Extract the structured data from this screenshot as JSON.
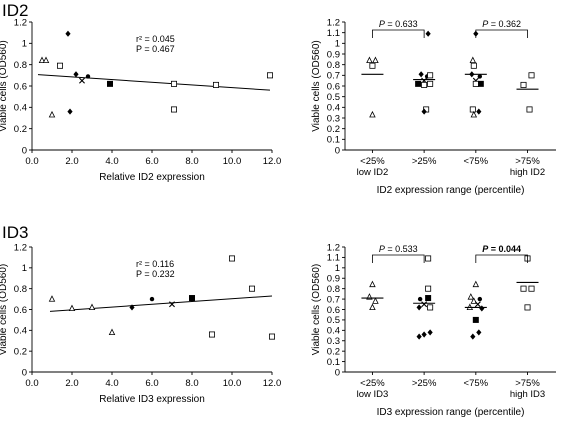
{
  "panels": [
    {
      "id": "id2",
      "label": "ID2"
    },
    {
      "id": "id3",
      "label": "ID3"
    }
  ],
  "chart_data": [
    {
      "type": "scatter",
      "panel": "ID2",
      "xlabel": "Relative ID2 expression",
      "ylabel": "Viable cells (OD560)",
      "xlim": [
        0,
        12
      ],
      "ylim": [
        0,
        1.2
      ],
      "xticks": [
        "0.0",
        "2.0",
        "4.0",
        "6.0",
        "8.0",
        "10.0",
        "12.0"
      ],
      "yticks": [
        "0",
        "0.2",
        "0.4",
        "0.6",
        "0.8",
        "1",
        "1.2"
      ],
      "stats": [
        "r² = 0.045",
        "P = 0.467"
      ],
      "regression": {
        "y_at_xmin": 0.71,
        "y_at_xmax": 0.56,
        "x_range": [
          0.3,
          11.9
        ]
      },
      "points": [
        {
          "x": 0.5,
          "y": 0.84,
          "m": "triangle"
        },
        {
          "x": 0.7,
          "y": 0.84,
          "m": "triangle"
        },
        {
          "x": 1.0,
          "y": 0.33,
          "m": "triangle"
        },
        {
          "x": 1.4,
          "y": 0.79,
          "m": "square"
        },
        {
          "x": 1.8,
          "y": 1.09,
          "m": "diamond"
        },
        {
          "x": 1.9,
          "y": 0.36,
          "m": "diamond"
        },
        {
          "x": 2.2,
          "y": 0.71,
          "m": "diamond"
        },
        {
          "x": 2.5,
          "y": 0.65,
          "m": "cross"
        },
        {
          "x": 2.8,
          "y": 0.69,
          "m": "circle"
        },
        {
          "x": 3.9,
          "y": 0.62,
          "m": "square-filled"
        },
        {
          "x": 7.1,
          "y": 0.62,
          "m": "square"
        },
        {
          "x": 7.1,
          "y": 0.38,
          "m": "square"
        },
        {
          "x": 9.2,
          "y": 0.61,
          "m": "square"
        },
        {
          "x": 11.9,
          "y": 0.7,
          "m": "square"
        }
      ]
    },
    {
      "type": "scatter",
      "panel": "ID2",
      "xlabel": "ID2 expression range (percentile)",
      "ylabel": "Viable cells (OD560)",
      "ylim": [
        0,
        1.2
      ],
      "yticks": [
        "0",
        "0.1",
        "0.2",
        "0.3",
        "0.4",
        "0.5",
        "0.6",
        "0.7",
        "0.8",
        "0.9",
        "1",
        "1.1",
        "1.2"
      ],
      "categories": [
        {
          "line1": "<25%",
          "line2": "low ID2"
        },
        {
          "line1": ">25%",
          "line2": ""
        },
        {
          "line1": "<75%",
          "line2": ""
        },
        {
          "line1": ">75%",
          "line2": "high ID2"
        }
      ],
      "comparisons": [
        {
          "text_p": "P",
          "text_val": " = 0.633",
          "bold": false,
          "from": 0,
          "to": 1
        },
        {
          "text_p": "P",
          "text_val": " = 0.362",
          "bold": false,
          "from": 2,
          "to": 3
        }
      ],
      "means": [
        0.71,
        0.66,
        0.71,
        0.57
      ],
      "groups": [
        [
          {
            "y": 0.84,
            "m": "triangle",
            "dx": -3
          },
          {
            "y": 0.84,
            "m": "triangle",
            "dx": 3
          },
          {
            "y": 0.79,
            "m": "square",
            "dx": 0
          },
          {
            "y": 0.33,
            "m": "triangle",
            "dx": 0
          }
        ],
        [
          {
            "y": 1.09,
            "m": "diamond",
            "dx": 4
          },
          {
            "y": 0.71,
            "m": "diamond",
            "dx": -3
          },
          {
            "y": 0.69,
            "m": "circle",
            "dx": 3
          },
          {
            "y": 0.7,
            "m": "square",
            "dx": 6
          },
          {
            "y": 0.65,
            "m": "cross",
            "dx": 0
          },
          {
            "y": 0.62,
            "m": "square-filled",
            "dx": -6
          },
          {
            "y": 0.62,
            "m": "square",
            "dx": 6
          },
          {
            "y": 0.61,
            "m": "square",
            "dx": 0
          },
          {
            "y": 0.38,
            "m": "square",
            "dx": 2
          },
          {
            "y": 0.36,
            "m": "diamond",
            "dx": 0
          }
        ],
        [
          {
            "y": 1.09,
            "m": "diamond",
            "dx": 0
          },
          {
            "y": 0.84,
            "m": "triangle",
            "dx": -3
          },
          {
            "y": 0.79,
            "m": "square",
            "dx": -2
          },
          {
            "y": 0.71,
            "m": "diamond",
            "dx": -4
          },
          {
            "y": 0.69,
            "m": "circle",
            "dx": 4
          },
          {
            "y": 0.65,
            "m": "cross",
            "dx": 0
          },
          {
            "y": 0.62,
            "m": "square-filled",
            "dx": 5
          },
          {
            "y": 0.62,
            "m": "square",
            "dx": 0
          },
          {
            "y": 0.38,
            "m": "square",
            "dx": -3
          },
          {
            "y": 0.36,
            "m": "diamond",
            "dx": 3
          },
          {
            "y": 0.33,
            "m": "triangle",
            "dx": -2
          }
        ],
        [
          {
            "y": 0.7,
            "m": "square",
            "dx": 4
          },
          {
            "y": 0.61,
            "m": "square",
            "dx": -4
          },
          {
            "y": 0.38,
            "m": "square",
            "dx": 2
          }
        ]
      ]
    },
    {
      "type": "scatter",
      "panel": "ID3",
      "xlabel": "Relative ID3 expression",
      "ylabel": "Viable cells (OD560)",
      "xlim": [
        0,
        12
      ],
      "ylim": [
        0,
        1.2
      ],
      "xticks": [
        "0.0",
        "2.0",
        "4.0",
        "6.0",
        "8.0",
        "10.0",
        "12.0"
      ],
      "yticks": [
        "0",
        "0.2",
        "0.4",
        "0.6",
        "0.8",
        "1",
        "1.2"
      ],
      "stats": [
        "r² = 0.116",
        "P = 0.232"
      ],
      "regression": {
        "y_at_xmin": 0.57,
        "y_at_xmax": 0.73,
        "x_range": [
          0.9,
          12.0
        ]
      },
      "points": [
        {
          "x": 1.0,
          "y": 0.7,
          "m": "triangle"
        },
        {
          "x": 2.0,
          "y": 0.61,
          "m": "triangle"
        },
        {
          "x": 3.0,
          "y": 0.62,
          "m": "triangle"
        },
        {
          "x": 4.0,
          "y": 0.38,
          "m": "triangle"
        },
        {
          "x": 5.0,
          "y": 0.62,
          "m": "diamond"
        },
        {
          "x": 6.0,
          "y": 0.7,
          "m": "circle"
        },
        {
          "x": 7.0,
          "y": 0.65,
          "m": "cross"
        },
        {
          "x": 8.0,
          "y": 0.71,
          "m": "square-filled"
        },
        {
          "x": 9.0,
          "y": 0.36,
          "m": "square"
        },
        {
          "x": 10.0,
          "y": 1.09,
          "m": "square"
        },
        {
          "x": 11.0,
          "y": 0.8,
          "m": "square"
        },
        {
          "x": 12.0,
          "y": 0.34,
          "m": "square"
        }
      ]
    },
    {
      "type": "scatter",
      "panel": "ID3",
      "xlabel": "ID3 expression range (percentile)",
      "ylabel": "Viable cells (OD560)",
      "ylim": [
        0,
        1.2
      ],
      "yticks": [
        "0",
        "0.1",
        "0.2",
        "0.3",
        "0.4",
        "0.5",
        "0.6",
        "0.7",
        "0.8",
        "0.9",
        "1",
        "1.1",
        "1.2"
      ],
      "categories": [
        {
          "line1": "<25%",
          "line2": "low ID3"
        },
        {
          "line1": ">25%",
          "line2": ""
        },
        {
          "line1": "<75%",
          "line2": ""
        },
        {
          "line1": ">75%",
          "line2": "high ID3"
        }
      ],
      "comparisons": [
        {
          "text_p": "P",
          "text_val": " = 0.533",
          "bold": false,
          "from": 0,
          "to": 1
        },
        {
          "text_p": "P",
          "text_val": " = 0.044",
          "bold": true,
          "from": 2,
          "to": 3
        }
      ],
      "means": [
        0.71,
        0.66,
        0.62,
        0.86
      ],
      "groups": [
        [
          {
            "y": 0.84,
            "m": "triangle",
            "dx": 0
          },
          {
            "y": 0.72,
            "m": "triangle",
            "dx": -3
          },
          {
            "y": 0.68,
            "m": "triangle",
            "dx": 3
          },
          {
            "y": 0.62,
            "m": "triangle",
            "dx": 0
          }
        ],
        [
          {
            "y": 1.09,
            "m": "square",
            "dx": 4
          },
          {
            "y": 0.8,
            "m": "square",
            "dx": 4
          },
          {
            "y": 0.7,
            "m": "circle",
            "dx": -4
          },
          {
            "y": 0.71,
            "m": "square-filled",
            "dx": 4
          },
          {
            "y": 0.65,
            "m": "cross",
            "dx": 0
          },
          {
            "y": 0.62,
            "m": "diamond",
            "dx": -5
          },
          {
            "y": 0.62,
            "m": "square",
            "dx": 6
          },
          {
            "y": 0.38,
            "m": "diamond",
            "dx": 6
          },
          {
            "y": 0.36,
            "m": "diamond",
            "dx": 0
          },
          {
            "y": 0.34,
            "m": "diamond",
            "dx": -5
          }
        ],
        [
          {
            "y": 0.84,
            "m": "triangle",
            "dx": 0
          },
          {
            "y": 0.72,
            "m": "triangle",
            "dx": -5
          },
          {
            "y": 0.7,
            "m": "circle",
            "dx": 4
          },
          {
            "y": 0.68,
            "m": "triangle",
            "dx": -2
          },
          {
            "y": 0.65,
            "m": "cross",
            "dx": 2
          },
          {
            "y": 0.62,
            "m": "triangle",
            "dx": -6
          },
          {
            "y": 0.61,
            "m": "diamond",
            "dx": 6
          },
          {
            "y": 0.5,
            "m": "square-filled",
            "dx": 0
          },
          {
            "y": 0.38,
            "m": "diamond",
            "dx": 3
          },
          {
            "y": 0.34,
            "m": "diamond",
            "dx": -3
          }
        ],
        [
          {
            "y": 1.09,
            "m": "square",
            "dx": 0
          },
          {
            "y": 0.8,
            "m": "square",
            "dx": -4
          },
          {
            "y": 0.8,
            "m": "square",
            "dx": 4
          },
          {
            "y": 0.62,
            "m": "square",
            "dx": 0
          }
        ]
      ]
    }
  ]
}
